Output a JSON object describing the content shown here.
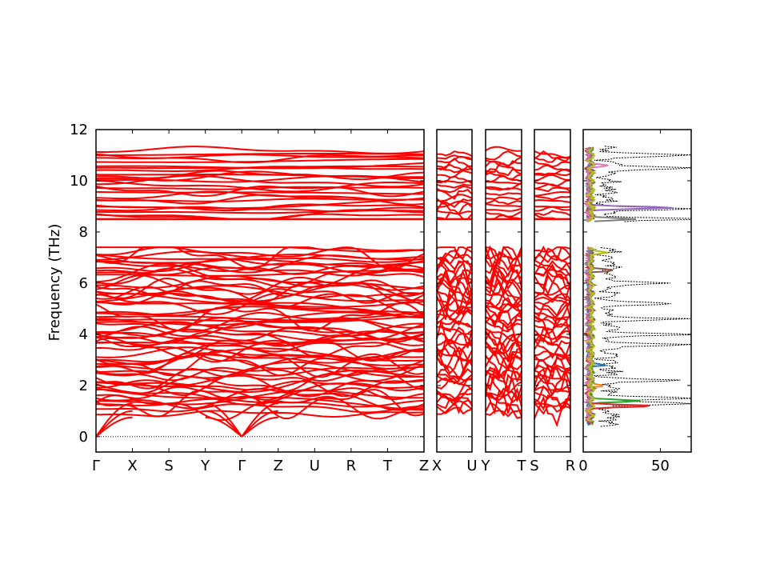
{
  "chart_data": {
    "type": "line",
    "ylabel": "Frequency (THz)",
    "ylim": [
      -0.6,
      12
    ],
    "yticks": [
      0,
      2,
      4,
      6,
      8,
      10,
      12
    ],
    "grid": false,
    "band_color": "#ff0000",
    "zero_line_color": "#0000cc",
    "band_gap": [
      7.45,
      8.45
    ],
    "band_panels": [
      {
        "id": "main",
        "path": [
          "Γ",
          "X",
          "S",
          "Y",
          "Γ",
          "Z",
          "U",
          "R",
          "T",
          "Z"
        ],
        "special_points": [
          "Γ",
          "X",
          "S",
          "Y",
          "Γ",
          "Z",
          "U",
          "R",
          "T",
          "Z"
        ],
        "acoustic_gamma_points": [
          0,
          4
        ]
      },
      {
        "id": "x-u",
        "special_points": [
          "X",
          "U"
        ]
      },
      {
        "id": "y-t",
        "special_points": [
          "Y",
          "T"
        ]
      },
      {
        "id": "s-r",
        "special_points": [
          "S",
          "R"
        ]
      }
    ],
    "dos_panel": {
      "xlim": [
        0,
        70
      ],
      "xticks": [
        0,
        50
      ],
      "total_color": "#000000",
      "total_style": "dotted",
      "total_peaks": [
        {
          "freq": 8.5,
          "value": 68
        },
        {
          "freq": 8.9,
          "value": 60
        },
        {
          "freq": 10.5,
          "value": 68
        },
        {
          "freq": 11.0,
          "value": 55
        },
        {
          "freq": 1.3,
          "value": 65
        },
        {
          "freq": 1.5,
          "value": 55
        },
        {
          "freq": 4.0,
          "value": 60
        },
        {
          "freq": 3.6,
          "value": 52
        },
        {
          "freq": 4.6,
          "value": 48
        },
        {
          "freq": 6.0,
          "value": 38
        },
        {
          "freq": 5.2,
          "value": 42
        },
        {
          "freq": 2.2,
          "value": 40
        }
      ],
      "partial_colors": [
        "#1f77b4",
        "#ff7f0e",
        "#2ca02c",
        "#d62728",
        "#9467bd",
        "#8c564b",
        "#e377c2",
        "#7f7f7f",
        "#bcbd22"
      ],
      "partial_peaks": [
        {
          "color": "#2ca02c",
          "freq": 1.4,
          "value": 33
        },
        {
          "color": "#d62728",
          "freq": 1.2,
          "value": 42
        },
        {
          "color": "#9467bd",
          "freq": 8.95,
          "value": 55
        },
        {
          "color": "#e377c2",
          "freq": 10.6,
          "value": 12
        },
        {
          "color": "#7f7f7f",
          "freq": 8.5,
          "value": 30
        },
        {
          "color": "#8c564b",
          "freq": 6.5,
          "value": 15
        },
        {
          "color": "#bcbd22",
          "freq": 7.2,
          "value": 10
        },
        {
          "color": "#1f77b4",
          "freq": 2.8,
          "value": 10
        },
        {
          "color": "#ff7f0e",
          "freq": 2.0,
          "value": 9
        }
      ]
    }
  }
}
